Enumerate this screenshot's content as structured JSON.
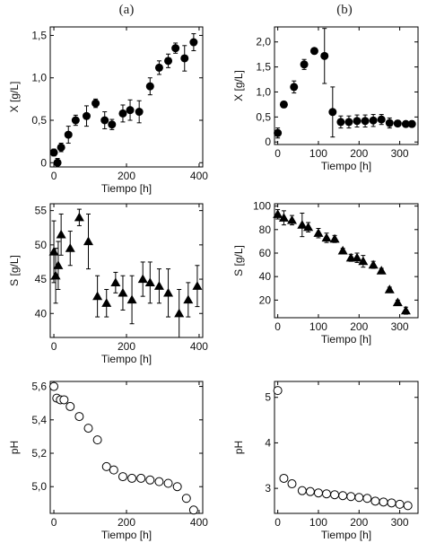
{
  "panel_labels": [
    "(a)",
    "(b)"
  ],
  "chart_data": [
    {
      "id": "a-x",
      "type": "scatter",
      "marker": "filled-circle",
      "xlabel": "Tiempo [h]",
      "ylabel": "X [g/L]",
      "xlim": [
        -10,
        410
      ],
      "ylim": [
        -0.05,
        1.6
      ],
      "xticks": [
        0,
        200,
        400
      ],
      "xticklabels": [
        "0",
        "200",
        "400"
      ],
      "yticks": [
        0,
        0.5,
        1.0,
        1.5
      ],
      "yticklabels": [
        "0",
        "0,5",
        "1,0",
        "1,5"
      ],
      "x": [
        0,
        10,
        20,
        40,
        60,
        90,
        115,
        140,
        160,
        190,
        210,
        235,
        265,
        290,
        315,
        335,
        360,
        385
      ],
      "y": [
        0.12,
        0.0,
        0.18,
        0.33,
        0.5,
        0.55,
        0.7,
        0.5,
        0.45,
        0.58,
        0.62,
        0.6,
        0.9,
        1.12,
        1.2,
        1.35,
        1.23,
        1.42
      ],
      "err": [
        0.04,
        0.05,
        0.05,
        0.1,
        0.06,
        0.12,
        0.05,
        0.1,
        0.06,
        0.1,
        0.12,
        0.13,
        0.1,
        0.08,
        0.08,
        0.06,
        0.15,
        0.1
      ]
    },
    {
      "id": "b-x",
      "type": "scatter",
      "marker": "filled-circle",
      "xlabel": "Tiempo [h]",
      "ylabel": "X [g/L]",
      "xlim": [
        -8,
        345
      ],
      "ylim": [
        -0.05,
        2.3
      ],
      "xticks": [
        0,
        100,
        200,
        300
      ],
      "xticklabels": [
        "0",
        "100",
        "200",
        "300"
      ],
      "yticks": [
        0,
        0.5,
        1.0,
        1.5,
        2.0
      ],
      "yticklabels": [
        "0",
        "0,5",
        "1,0",
        "1,5",
        "2,0"
      ],
      "x": [
        0,
        15,
        40,
        65,
        90,
        115,
        135,
        155,
        175,
        195,
        215,
        235,
        255,
        275,
        295,
        315,
        330
      ],
      "y": [
        0.18,
        0.75,
        1.1,
        1.55,
        1.82,
        1.72,
        0.6,
        0.4,
        0.4,
        0.42,
        0.42,
        0.43,
        0.45,
        0.38,
        0.37,
        0.36,
        0.36
      ],
      "err": [
        0.1,
        0.06,
        0.12,
        0.1,
        0.05,
        0.55,
        0.5,
        0.12,
        0.12,
        0.12,
        0.12,
        0.12,
        0.1,
        0.1,
        0.06,
        0.05,
        0.06
      ]
    },
    {
      "id": "a-s",
      "type": "scatter",
      "marker": "filled-triangle",
      "xlabel": "Tiempo [h]",
      "ylabel": "S [g/L]",
      "xlim": [
        -10,
        410
      ],
      "ylim": [
        36.5,
        56
      ],
      "xticks": [
        0,
        200,
        400
      ],
      "xticklabels": [
        "0",
        "200",
        "400"
      ],
      "yticks": [
        40,
        45,
        50,
        55
      ],
      "yticklabels": [
        "40",
        "45",
        "50",
        "55"
      ],
      "x": [
        0,
        5,
        12,
        20,
        45,
        70,
        95,
        120,
        145,
        170,
        190,
        215,
        245,
        265,
        290,
        315,
        345,
        370,
        395
      ],
      "y": [
        49,
        45.5,
        47,
        51.5,
        49.5,
        54,
        50.5,
        42.5,
        41.5,
        44.5,
        43,
        42,
        45,
        44.5,
        44,
        43,
        40,
        42,
        44
      ],
      "err": [
        4.5,
        4,
        3.5,
        3,
        2.5,
        1.2,
        4,
        3,
        2,
        1.5,
        2.5,
        3.5,
        2.5,
        3,
        2.5,
        3.5,
        3.5,
        2.5,
        3
      ]
    },
    {
      "id": "b-s",
      "type": "scatter",
      "marker": "filled-triangle",
      "xlabel": "Tiempo [h]",
      "ylabel": "S [g/L]",
      "xlim": [
        -8,
        345
      ],
      "ylim": [
        5,
        102
      ],
      "xticks": [
        0,
        100,
        200,
        300
      ],
      "xticklabels": [
        "0",
        "100",
        "200",
        "300"
      ],
      "yticks": [
        20,
        40,
        60,
        80,
        100
      ],
      "yticklabels": [
        "20",
        "40",
        "60",
        "80",
        "100"
      ],
      "x": [
        0,
        15,
        35,
        60,
        75,
        100,
        120,
        140,
        160,
        180,
        195,
        210,
        235,
        255,
        275,
        295,
        315
      ],
      "y": [
        93,
        90,
        88,
        84,
        82,
        77,
        73,
        72,
        62,
        56,
        56,
        53,
        50,
        45,
        29,
        18,
        11
      ],
      "err": [
        4,
        6,
        4,
        10,
        4,
        4,
        4,
        3,
        2,
        3,
        4,
        5,
        3,
        2,
        2,
        2,
        3
      ]
    },
    {
      "id": "a-ph",
      "type": "scatter",
      "marker": "open-circle",
      "xlabel": "Tiempo [h]",
      "ylabel": "pH",
      "xlim": [
        -10,
        410
      ],
      "ylim": [
        4.84,
        5.63
      ],
      "xticks": [
        0,
        200,
        400
      ],
      "xticklabels": [
        "0",
        "200",
        "400"
      ],
      "yticks": [
        5.0,
        5.2,
        5.4,
        5.6
      ],
      "yticklabels": [
        "5,0",
        "5,2",
        "5,4",
        "5,6"
      ],
      "x": [
        0,
        8,
        18,
        28,
        45,
        70,
        95,
        120,
        145,
        165,
        190,
        215,
        240,
        265,
        290,
        315,
        340,
        365,
        385
      ],
      "y": [
        5.6,
        5.53,
        5.52,
        5.52,
        5.48,
        5.42,
        5.35,
        5.28,
        5.12,
        5.1,
        5.06,
        5.05,
        5.05,
        5.04,
        5.03,
        5.02,
        5.0,
        4.93,
        4.86
      ]
    },
    {
      "id": "b-ph",
      "type": "scatter",
      "marker": "open-circle",
      "xlabel": "Tiempo [h]",
      "ylabel": "pH",
      "xlim": [
        -8,
        345
      ],
      "ylim": [
        2.45,
        5.35
      ],
      "xticks": [
        0,
        100,
        200,
        300
      ],
      "xticklabels": [
        "0",
        "100",
        "200",
        "300"
      ],
      "yticks": [
        3,
        4,
        5
      ],
      "yticklabels": [
        "3",
        "4",
        "5"
      ],
      "x": [
        0,
        15,
        35,
        60,
        80,
        100,
        120,
        140,
        160,
        180,
        200,
        220,
        240,
        260,
        280,
        300,
        320
      ],
      "y": [
        5.15,
        3.22,
        3.1,
        2.95,
        2.93,
        2.9,
        2.88,
        2.86,
        2.84,
        2.82,
        2.8,
        2.78,
        2.72,
        2.7,
        2.68,
        2.65,
        2.62
      ]
    }
  ]
}
